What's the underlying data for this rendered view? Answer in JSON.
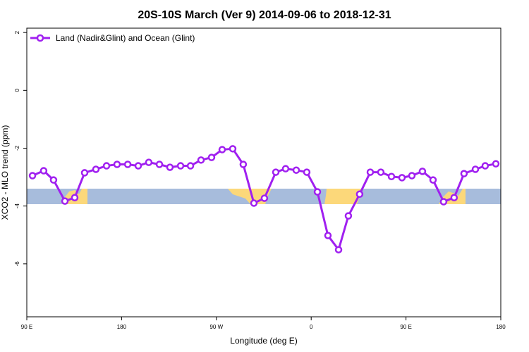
{
  "chart_data": {
    "type": "line",
    "title": "20S-10S March (Ver 9)   2014-09-06 to 2018-12-31",
    "x_label": "Longitude (deg E)",
    "y_label": "XCO2 - MLO trend (ppm)",
    "xlim": [
      90,
      540
    ],
    "ylim": [
      -7.83,
      2.15
    ],
    "xticks": [
      {
        "value": 90,
        "label": "90 E"
      },
      180,
      {
        "value": 270,
        "label": "90 W"
      },
      {
        "value": 360,
        "label": "0"
      },
      {
        "value": 450,
        "label": "90 E"
      },
      {
        "value": 540,
        "label": "180"
      }
    ],
    "yticks": [
      -6,
      -4,
      -2,
      0,
      2
    ],
    "legend": "top-left",
    "series": [
      {
        "name": "Land (Nadir&Glint) and Ocean (Glint)",
        "color": "#a020f0",
        "x": [
          95.4,
          106,
          115.4,
          126.2,
          135.5,
          144.9,
          155.6,
          165.7,
          175.7,
          185.8,
          195.8,
          205.8,
          215.9,
          225.9,
          236,
          245.4,
          255.4,
          265.4,
          275.5,
          285.5,
          295.5,
          305.6,
          315.6,
          326.4,
          335.7,
          345.8,
          355.8,
          365.9,
          375.9,
          386,
          395.3,
          406,
          416.1,
          426.1,
          436.2,
          446.2,
          455.6,
          465.6,
          475.7,
          485.7,
          495.7,
          505.1,
          515.9,
          525.2,
          535.3
        ],
        "values": [
          -2.95,
          -2.78,
          -3.1,
          -3.83,
          -3.71,
          -2.85,
          -2.73,
          -2.61,
          -2.56,
          -2.56,
          -2.61,
          -2.49,
          -2.56,
          -2.66,
          -2.61,
          -2.61,
          -2.41,
          -2.32,
          -2.05,
          -2.02,
          -2.56,
          -3.9,
          -3.73,
          -2.83,
          -2.71,
          -2.76,
          -2.83,
          -3.51,
          -5.02,
          -5.51,
          -4.34,
          -3.59,
          -2.83,
          -2.83,
          -2.98,
          -3.02,
          -2.95,
          -2.8,
          -3.1,
          -3.85,
          -3.71,
          -2.88,
          -2.73,
          -2.61,
          -2.54
        ]
      }
    ]
  }
}
